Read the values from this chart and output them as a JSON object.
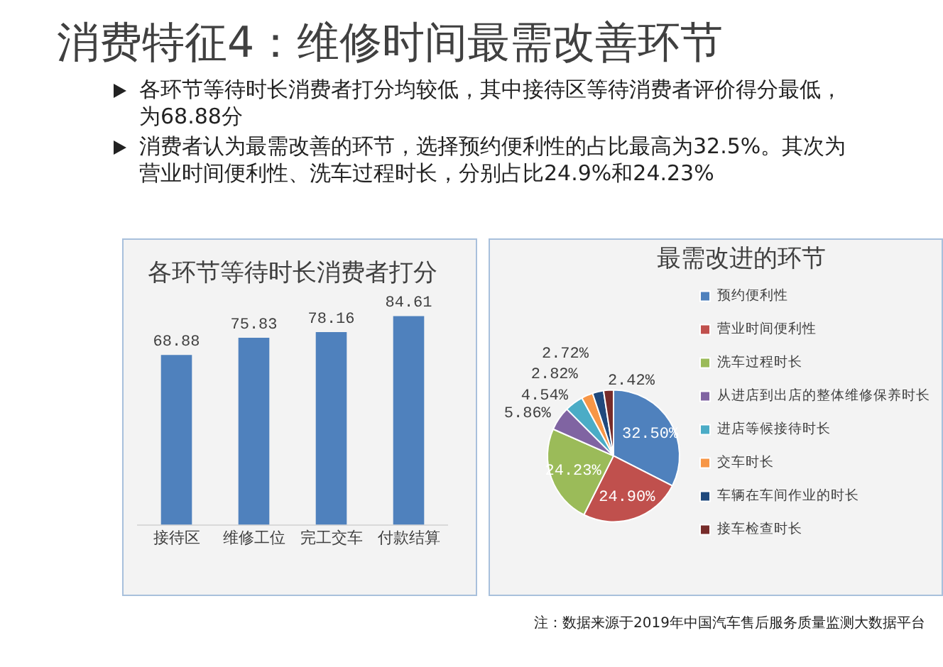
{
  "chart_data": [
    {
      "type": "other",
      "title": "消费特征4：维修时间最需改善环节",
      "annotations": [
        "各环节等待时长消费者打分均较低，其中接待区等待消费者评价得分最低，为68.88分",
        "消费者认为最需改善的环节，选择预约便利性的占比最高为32.5%。其次为营业时间便利性、洗车过程时长，分别占比24.9%和24.23%"
      ]
    },
    {
      "type": "bar",
      "title": "各环节等待时长消费者打分",
      "categories": [
        "接待区",
        "维修工位",
        "完工交车",
        "付款结算"
      ],
      "values": [
        68.88,
        75.83,
        78.16,
        84.61
      ],
      "color": "#4f81bd",
      "data_labels": true
    },
    {
      "type": "pie",
      "title": "最需改进的环节",
      "categories": [
        "预约便利性",
        "营业时间便利性",
        "洗车过程时长",
        "从进店到出店的整体维修保养时长",
        "进店等候接待时长",
        "交车时长",
        "车辆在车间作业的时长",
        "接车检查时长"
      ],
      "values": [
        32.5,
        24.9,
        24.23,
        5.86,
        4.54,
        2.82,
        2.72,
        2.42
      ],
      "value_labels": [
        "32.50%",
        "24.90%",
        "24.23%",
        "5.86%",
        "4.54%",
        "2.82%",
        "2.72%",
        "2.42%"
      ],
      "colors": [
        "#4f81bd",
        "#c0504d",
        "#9bbb59",
        "#8064a2",
        "#4bacc6",
        "#f79646",
        "#1f497d",
        "#772c2a"
      ],
      "legend": "right",
      "annotations": [
        "注：数据来源于2019年中国汽车售后服务质量监测大数据平台"
      ]
    }
  ]
}
